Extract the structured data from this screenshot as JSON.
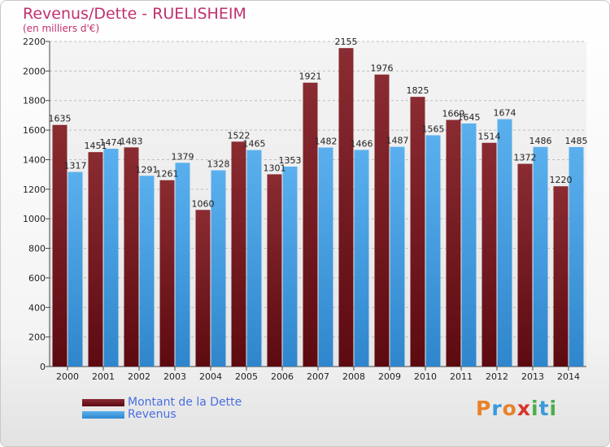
{
  "chart_data": {
    "type": "bar",
    "title": "Revenus/Dette - RUELISHEIM",
    "subtitle": "(en milliers d'€)",
    "categories": [
      "2000",
      "2001",
      "2002",
      "2003",
      "2004",
      "2005",
      "2006",
      "2007",
      "2008",
      "2009",
      "2010",
      "2011",
      "2012",
      "2013",
      "2014"
    ],
    "series": [
      {
        "name": "Montant de la Dette",
        "color": "#7a1e24",
        "values": [
          1635,
          1451,
          1483,
          1261,
          1060,
          1522,
          1301,
          1921,
          2155,
          1976,
          1825,
          1669,
          1514,
          1372,
          1220
        ],
        "labels": [
          "1635",
          "1451",
          "1483",
          "1261",
          "1060",
          "1522",
          "1301",
          "1921",
          "2155",
          "1976",
          "1825",
          "1669",
          "1514",
          "1372",
          "1220"
        ]
      },
      {
        "name": "Revenus",
        "color": "#4da3e6",
        "values": [
          1317,
          1474,
          1291,
          1379,
          1328,
          1465,
          1353,
          1482,
          1466,
          1487,
          1565,
          1645,
          1674,
          1486,
          1485
        ],
        "labels": [
          "1317",
          "1474",
          "1291",
          "1379",
          "1328",
          "1465",
          "1353",
          "1482",
          "1466",
          "1487",
          "1565",
          "1645",
          "1674",
          "1486",
          "1485"
        ]
      }
    ],
    "ylim": [
      0,
      2200
    ],
    "yticks": [
      0,
      200,
      400,
      600,
      800,
      1000,
      1200,
      1400,
      1600,
      1800,
      2000,
      2200
    ],
    "grid": true,
    "legend_position": "bottom-left"
  },
  "legend": {
    "debt_label": "Montant de la Dette",
    "revenue_label": "Revenus",
    "debt_color": "#7a1e24",
    "revenue_color": "#4da3e6"
  },
  "logo": {
    "text": "Proxiti",
    "letters": [
      "P",
      "r",
      "o",
      "x",
      "i",
      "t",
      "i"
    ],
    "colors": [
      "#e8822a",
      "#3a9ad8",
      "#e8822a",
      "#d9342b",
      "#4cae4c",
      "#3a9ad8",
      "#4cae4c"
    ]
  }
}
